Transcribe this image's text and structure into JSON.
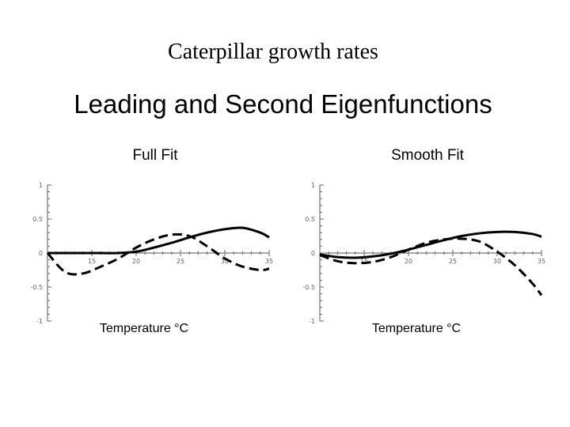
{
  "slide": {
    "title": "Caterpillar growth rates"
  },
  "figure": {
    "title": "Leading and Second Eigenfunctions"
  },
  "chart_data": [
    {
      "type": "line",
      "title": "Full Fit",
      "xlabel": "Temperature °C",
      "ylabel": "",
      "xlim": [
        10,
        35
      ],
      "ylim": [
        -1,
        1
      ],
      "xticks": [
        15,
        20,
        25,
        30,
        35
      ],
      "yticks": [
        -1,
        -0.5,
        0,
        0.5,
        1
      ],
      "x": [
        10,
        12,
        14,
        16,
        18,
        20,
        22,
        24,
        26,
        28,
        30,
        32,
        34,
        35
      ],
      "series": [
        {
          "style": "solid",
          "values": [
            0.0,
            0.0,
            0.0,
            0.0,
            0.0,
            0.02,
            0.08,
            0.15,
            0.23,
            0.3,
            0.35,
            0.37,
            0.3,
            0.23
          ]
        },
        {
          "style": "dashed",
          "values": [
            0.0,
            -0.28,
            -0.3,
            -0.2,
            -0.08,
            0.08,
            0.2,
            0.27,
            0.25,
            0.1,
            -0.08,
            -0.2,
            -0.25,
            -0.23
          ]
        }
      ]
    },
    {
      "type": "line",
      "title": "Smooth Fit",
      "xlabel": "Temperature °C",
      "ylabel": "",
      "xlim": [
        10,
        35
      ],
      "ylim": [
        -1,
        1
      ],
      "xticks": [
        15,
        20,
        25,
        30,
        35
      ],
      "yticks": [
        -1,
        -0.5,
        0,
        0.5,
        1
      ],
      "x": [
        10,
        12,
        14,
        16,
        18,
        20,
        22,
        24,
        26,
        28,
        30,
        32,
        34,
        35
      ],
      "series": [
        {
          "style": "solid",
          "values": [
            -0.02,
            -0.06,
            -0.07,
            -0.05,
            -0.01,
            0.05,
            0.12,
            0.19,
            0.25,
            0.29,
            0.31,
            0.31,
            0.28,
            0.24
          ]
        },
        {
          "style": "dashed",
          "values": [
            -0.03,
            -0.12,
            -0.15,
            -0.13,
            -0.06,
            0.05,
            0.15,
            0.2,
            0.21,
            0.17,
            0.02,
            -0.18,
            -0.45,
            -0.62
          ]
        }
      ]
    }
  ]
}
